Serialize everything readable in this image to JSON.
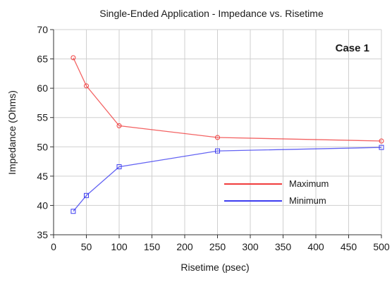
{
  "chart_data": {
    "type": "line",
    "title": "Single-Ended Application - Impedance vs. Risetime",
    "xlabel": "Risetime (psec)",
    "ylabel": "Impedance (Ohms)",
    "xlim": [
      0,
      500
    ],
    "ylim": [
      35,
      70
    ],
    "x_ticks": [
      "0",
      "50",
      "100",
      "150",
      "200",
      "250",
      "300",
      "350",
      "400",
      "450",
      "500"
    ],
    "y_ticks": [
      "35",
      "40",
      "45",
      "50",
      "55",
      "60",
      "65",
      "70"
    ],
    "grid": true,
    "legend_position": "center-right",
    "annotation": "Case 1",
    "x": [
      30,
      50,
      100,
      250,
      500
    ],
    "series": [
      {
        "name": "Maximum",
        "color": "#f03c3c",
        "values": [
          65.2,
          60.4,
          53.6,
          51.6,
          51.0
        ]
      },
      {
        "name": "Minimum",
        "color": "#3c3cf0",
        "values": [
          39.0,
          41.7,
          46.6,
          49.3,
          49.9
        ]
      }
    ]
  }
}
